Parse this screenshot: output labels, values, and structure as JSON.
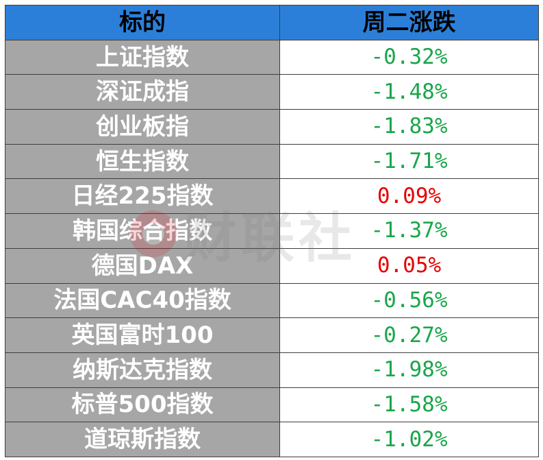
{
  "header": {
    "col_name": "标的",
    "col_change": "周二涨跌"
  },
  "rows": [
    {
      "name": "上证指数",
      "change": "-0.32%"
    },
    {
      "name": "深证成指",
      "change": "-1.48%"
    },
    {
      "name": "创业板指",
      "change": "-1.83%"
    },
    {
      "name": "恒生指数",
      "change": "-1.71%"
    },
    {
      "name": "日经225指数",
      "change": "0.09%"
    },
    {
      "name": "韩国综合指数",
      "change": "-1.37%"
    },
    {
      "name": "德国DAX",
      "change": "0.05%"
    },
    {
      "name": "法国CAC40指数",
      "change": "-0.56%"
    },
    {
      "name": "英国富时100",
      "change": "-0.27%"
    },
    {
      "name": "纳斯达克指数",
      "change": "-1.98%"
    },
    {
      "name": "标普500指数",
      "change": "-1.58%"
    },
    {
      "name": "道琼斯指数",
      "change": "-1.02%"
    }
  ],
  "colors": {
    "negative": "#1aa64a",
    "positive": "#e60000",
    "header_bg": "#2c7fd8",
    "name_bg": "#a6a6a6"
  },
  "watermark": {
    "text": "财联社",
    "logo": "cls-logo-icon"
  }
}
